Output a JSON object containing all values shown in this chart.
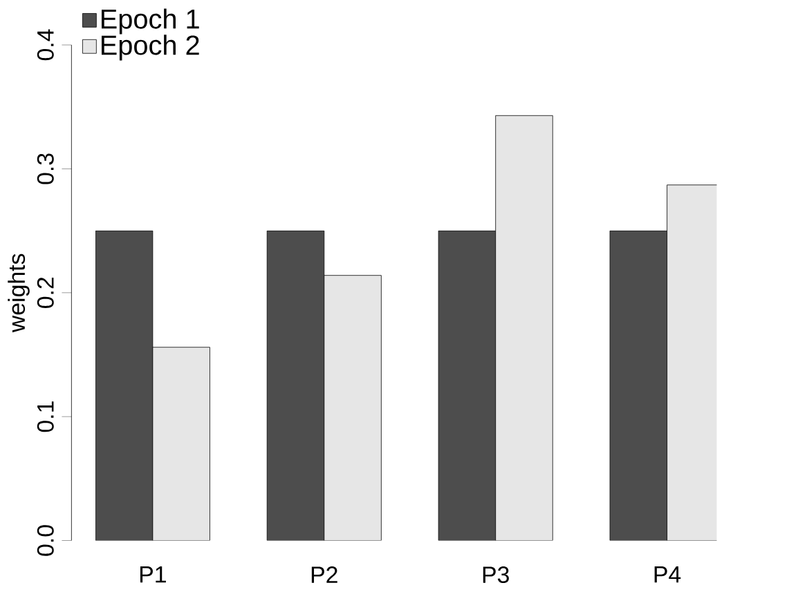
{
  "chart_data": {
    "type": "bar",
    "ylabel": "weights",
    "categories": [
      "P1",
      "P2",
      "P3",
      "P4"
    ],
    "series": [
      {
        "name": "Epoch 1",
        "color": "#4d4d4d",
        "values": [
          0.25,
          0.25,
          0.25,
          0.25
        ]
      },
      {
        "name": "Epoch 2",
        "color": "#e6e6e6",
        "values": [
          0.156,
          0.214,
          0.343,
          0.287
        ]
      }
    ],
    "ylim": [
      0,
      0.4
    ],
    "yticks": [
      {
        "value": 0,
        "label": "0.0"
      },
      0.1,
      0.2,
      0.3,
      0.4
    ],
    "grid": false,
    "legend": "top left"
  }
}
